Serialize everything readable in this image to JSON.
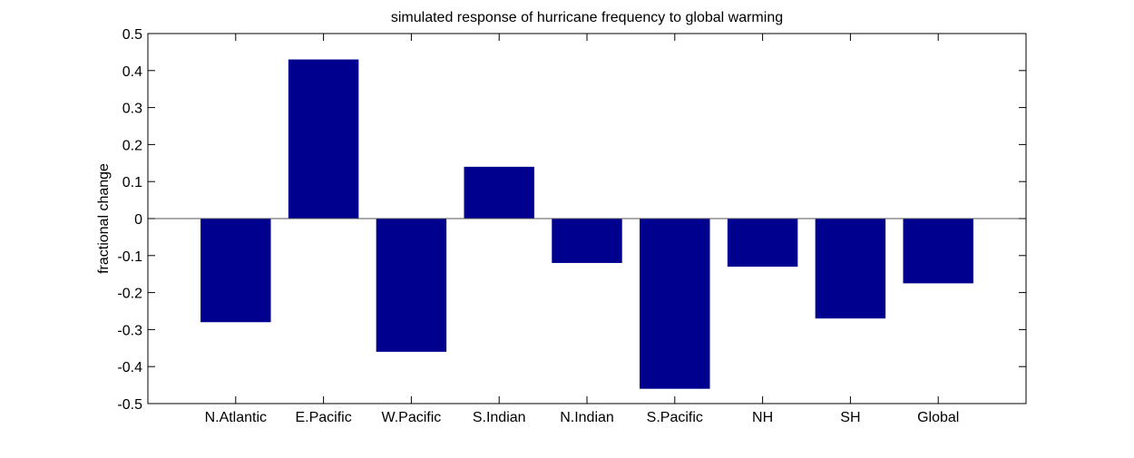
{
  "chart_data": {
    "type": "bar",
    "title": "simulated response of hurricane frequency to global warming",
    "xlabel": "",
    "ylabel": "fractional change",
    "categories": [
      "N.Atlantic",
      "E.Pacific",
      "W.Pacific",
      "S.Indian",
      "N.Indian",
      "S.Pacific",
      "NH",
      "SH",
      "Global"
    ],
    "values": [
      -0.28,
      0.43,
      -0.36,
      0.14,
      -0.12,
      -0.46,
      -0.13,
      -0.27,
      -0.175
    ],
    "ylim": [
      -0.5,
      0.5
    ],
    "yticks": [
      "-0.5",
      "-0.4",
      "-0.3",
      "-0.2",
      "-0.1",
      "0",
      "0.1",
      "0.2",
      "0.3",
      "0.4",
      "0.5"
    ],
    "grid": false,
    "bar_color": "#00008f",
    "axis_color": "#000000",
    "zero_line_color": "#555555"
  }
}
